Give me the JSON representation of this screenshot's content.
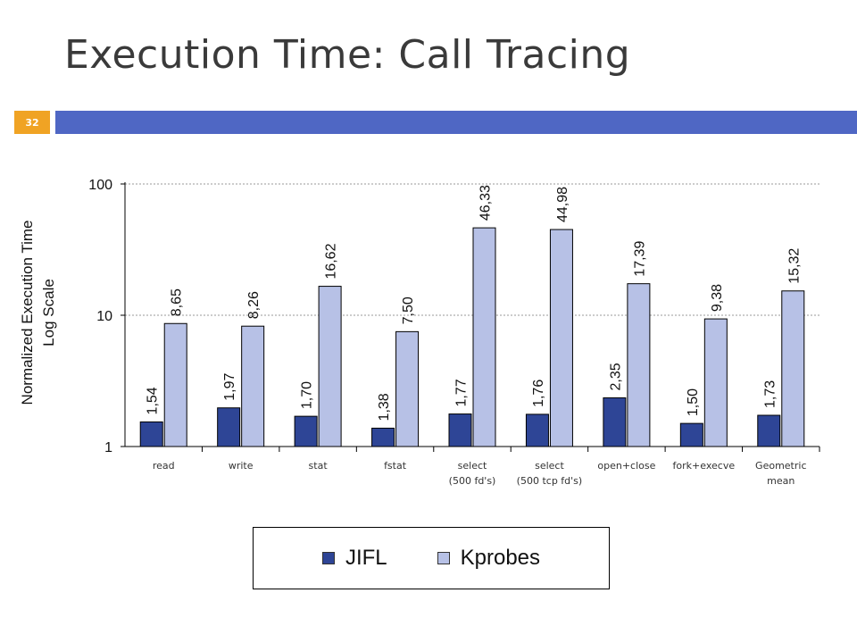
{
  "slide": {
    "title": "Execution Time: Call Tracing",
    "page_number": "32"
  },
  "colors": {
    "accent_bar": "#4f67c4",
    "page_box": "#f0a324",
    "jifl": "#2e4596",
    "kprobes": "#b7c1e6"
  },
  "chart_data": {
    "type": "bar",
    "scale": "log",
    "ylabel": "Normalized Execution Time\nLog Scale",
    "ylabel_lines": [
      "Normalized Execution Time",
      "Log Scale"
    ],
    "ylim": [
      1,
      100
    ],
    "yticks": [
      "1",
      "10",
      "100"
    ],
    "grid": true,
    "legend_position": "bottom",
    "categories": [
      [
        "read"
      ],
      [
        "write"
      ],
      [
        "stat"
      ],
      [
        "fstat"
      ],
      [
        "select",
        "(500 fd's)"
      ],
      [
        "select",
        "(500 tcp fd's)"
      ],
      [
        "open+close"
      ],
      [
        "fork+execve"
      ],
      [
        "Geometric",
        "mean"
      ]
    ],
    "series": [
      {
        "name": "JIFL",
        "values": [
          1.54,
          1.97,
          1.7,
          1.38,
          1.77,
          1.76,
          2.35,
          1.5,
          1.73
        ],
        "labels": [
          "1,54",
          "1,97",
          "1,70",
          "1,38",
          "1,77",
          "1,76",
          "2,35",
          "1,50",
          "1,73"
        ]
      },
      {
        "name": "Kprobes",
        "values": [
          8.65,
          8.26,
          16.62,
          7.5,
          46.33,
          44.98,
          17.39,
          9.38,
          15.32
        ],
        "labels": [
          "8,65",
          "8,26",
          "16,62",
          "7,50",
          "46,33",
          "44,98",
          "17,39",
          "9,38",
          "15,32"
        ]
      }
    ]
  }
}
